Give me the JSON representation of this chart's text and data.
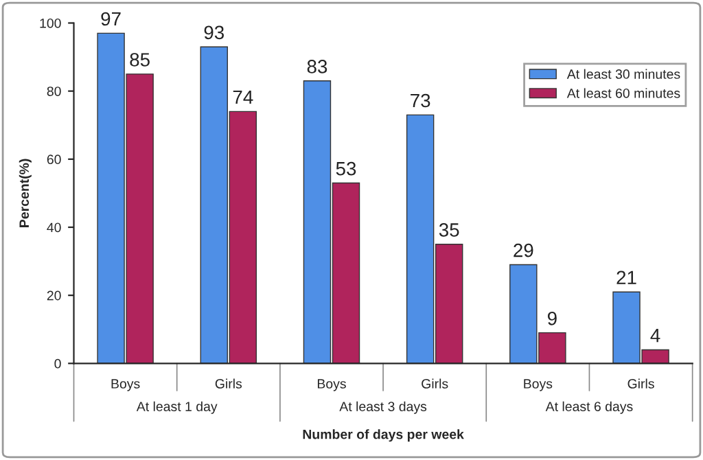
{
  "chart_data": {
    "type": "bar",
    "xlabel": "Number of days per week",
    "ylabel": "Percent(%)",
    "categories": [
      "Boys",
      "Girls",
      "Boys",
      "Girls",
      "Boys",
      "Girls"
    ],
    "annotations": [
      "At least 1 day",
      "At least 3 days",
      "At least 6 days"
    ],
    "series": [
      {
        "name": "At least 30 minutes",
        "color": "#4f8fe6",
        "values": [
          97,
          93,
          83,
          73,
          29,
          21
        ]
      },
      {
        "name": "At least 60 minutes",
        "color": "#b0245c",
        "values": [
          85,
          74,
          53,
          35,
          9,
          4
        ]
      }
    ],
    "ylim": [
      0,
      100
    ],
    "yticks": [
      0,
      20,
      40,
      60,
      80,
      100
    ],
    "grid": false,
    "legend": "top right",
    "data_labels": true
  }
}
